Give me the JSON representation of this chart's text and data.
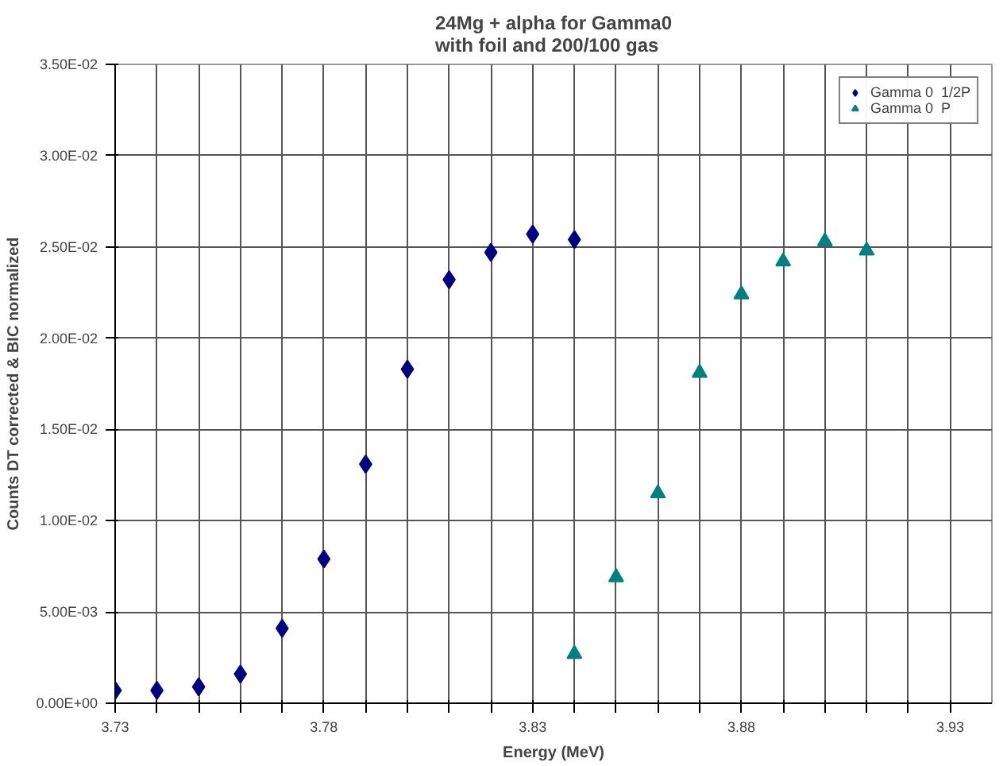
{
  "chart_data": {
    "type": "scatter",
    "title": "24Mg + alpha for Gamma0\nwith foil and 200/100 gas",
    "xlabel": "Energy (MeV)",
    "ylabel": "Counts DT corrected & BIC normalized",
    "xlim": [
      3.73,
      3.94
    ],
    "ylim": [
      0,
      0.035
    ],
    "xticks": [
      3.73,
      {
        "value": 3.74,
        "label": null
      },
      {
        "value": 3.75,
        "label": null
      },
      {
        "value": 3.76,
        "label": null
      },
      {
        "value": 3.77,
        "label": null
      },
      3.78,
      {
        "value": 3.79,
        "label": null
      },
      {
        "value": 3.8,
        "label": null
      },
      {
        "value": 3.81,
        "label": null
      },
      {
        "value": 3.82,
        "label": null
      },
      3.83,
      {
        "value": 3.84,
        "label": null
      },
      {
        "value": 3.85,
        "label": null
      },
      {
        "value": 3.86,
        "label": null
      },
      {
        "value": 3.87,
        "label": null
      },
      3.88,
      {
        "value": 3.89,
        "label": null
      },
      {
        "value": 3.9,
        "label": null
      },
      {
        "value": 3.91,
        "label": null
      },
      {
        "value": 3.92,
        "label": null
      },
      3.93
    ],
    "yticks": [
      {
        "value": 0,
        "label": "0.00E+00"
      },
      {
        "value": 0.005,
        "label": "5.00E-03"
      },
      {
        "value": 0.01,
        "label": "1.00E-02"
      },
      {
        "value": 0.015,
        "label": "1.50E-02"
      },
      {
        "value": 0.02,
        "label": "2.00E-02"
      },
      {
        "value": 0.025,
        "label": "2.50E-02"
      },
      {
        "value": 0.03,
        "label": "3.00E-02"
      },
      {
        "value": 0.035,
        "label": "3.50E-02"
      }
    ],
    "grid": true,
    "legend": "top right",
    "series": [
      {
        "name": "Gamma 0  1/2P",
        "color": "#000080",
        "marker": "diamond",
        "x": [
          3.73,
          3.74,
          3.75,
          3.76,
          3.77,
          3.78,
          3.79,
          3.8,
          3.81,
          3.82,
          3.83,
          3.84
        ],
        "values": [
          0.0007,
          0.0007,
          0.0009,
          0.0016,
          0.0041,
          0.0079,
          0.0131,
          0.0183,
          0.0232,
          0.0247,
          0.0257,
          0.0254
        ]
      },
      {
        "name": "Gamma 0  P",
        "color": "#008080",
        "marker": "triangle",
        "x": [
          3.84,
          3.85,
          3.86,
          3.87,
          3.88,
          3.89,
          3.9,
          3.91
        ],
        "values": [
          0.0027,
          0.0069,
          0.0115,
          0.0181,
          0.0224,
          0.0242,
          0.0253,
          0.0248
        ]
      }
    ]
  }
}
